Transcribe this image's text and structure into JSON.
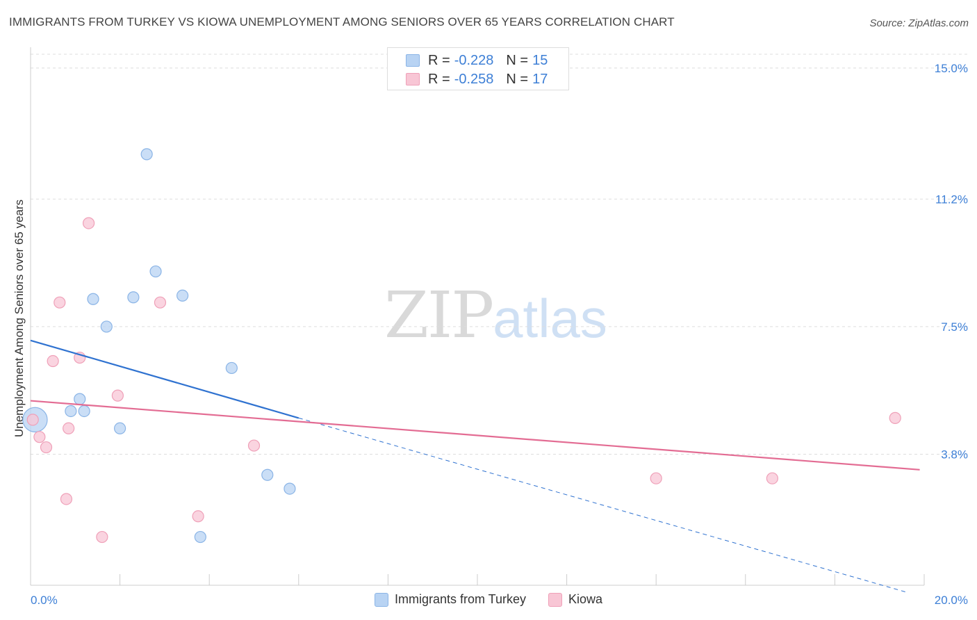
{
  "header": {
    "title": "IMMIGRANTS FROM TURKEY VS KIOWA UNEMPLOYMENT AMONG SENIORS OVER 65 YEARS CORRELATION CHART",
    "source": "Source: ZipAtlas.com"
  },
  "watermark": {
    "zip": "ZIP",
    "atlas": "atlas"
  },
  "legend_top": {
    "rows": [
      {
        "r_label": "R =",
        "r_value": "-0.228",
        "n_label": "N =",
        "n_value": "15"
      },
      {
        "r_label": "R =",
        "r_value": "-0.258",
        "n_label": "N =",
        "n_value": "17"
      }
    ]
  },
  "legend_bottom": {
    "items": [
      "Immigrants from Turkey",
      "Kiowa"
    ]
  },
  "colors": {
    "turkey_fill": "#b8d3f3",
    "turkey_stroke": "#8ab4e6",
    "turkey_line": "#2f72d0",
    "kiowa_fill": "#f8c6d5",
    "kiowa_stroke": "#efa0b8",
    "kiowa_line": "#e36c93",
    "tick_label": "#3d7fd6",
    "grid": "#dddddd"
  },
  "chart_data": {
    "type": "scatter",
    "title": "IMMIGRANTS FROM TURKEY VS KIOWA UNEMPLOYMENT AMONG SENIORS OVER 65 YEARS CORRELATION CHART",
    "xlabel": "",
    "ylabel": "Unemployment Among Seniors over 65 years",
    "xlim": [
      0,
      20
    ],
    "ylim": [
      0,
      15.4
    ],
    "x_tick_labels": [
      "0.0%",
      "20.0%"
    ],
    "y_ticks": [
      3.8,
      7.5,
      11.2,
      15.0
    ],
    "y_tick_labels": [
      "3.8%",
      "7.5%",
      "11.2%",
      "15.0%"
    ],
    "grid": true,
    "legend_position": "top-center",
    "series": [
      {
        "name": "Immigrants from Turkey",
        "points": [
          [
            0.1,
            4.8,
            2.2
          ],
          [
            0.9,
            5.05,
            1
          ],
          [
            1.2,
            5.05,
            1
          ],
          [
            1.1,
            5.4,
            1
          ],
          [
            1.4,
            8.3,
            1
          ],
          [
            1.7,
            7.5,
            1
          ],
          [
            2.0,
            4.55,
            1
          ],
          [
            2.3,
            8.35,
            1
          ],
          [
            2.6,
            12.5,
            1
          ],
          [
            2.8,
            9.1,
            1
          ],
          [
            3.4,
            8.4,
            1
          ],
          [
            3.8,
            1.4,
            1
          ],
          [
            4.5,
            6.3,
            1
          ],
          [
            5.3,
            3.2,
            1
          ],
          [
            5.8,
            2.8,
            1
          ]
        ],
        "trend": {
          "x": [
            0,
            6.0
          ],
          "y": [
            7.1,
            4.85
          ]
        },
        "trend_extended": {
          "x": [
            6.0,
            19.6
          ],
          "y": [
            4.85,
            -0.2
          ]
        }
      },
      {
        "name": "Kiowa",
        "points": [
          [
            0.05,
            4.8,
            1
          ],
          [
            0.2,
            4.3,
            1
          ],
          [
            0.35,
            4.0,
            1
          ],
          [
            0.5,
            6.5,
            1
          ],
          [
            0.65,
            8.2,
            1
          ],
          [
            0.8,
            2.5,
            1
          ],
          [
            0.85,
            4.55,
            1
          ],
          [
            1.1,
            6.6,
            1
          ],
          [
            1.3,
            10.5,
            1
          ],
          [
            1.6,
            1.4,
            1
          ],
          [
            1.95,
            5.5,
            1
          ],
          [
            2.9,
            8.2,
            1
          ],
          [
            3.75,
            2.0,
            1
          ],
          [
            5.0,
            4.05,
            1
          ],
          [
            14.0,
            3.1,
            1
          ],
          [
            16.6,
            3.1,
            1
          ],
          [
            19.35,
            4.85,
            1
          ]
        ],
        "trend": {
          "x": [
            0,
            19.9
          ],
          "y": [
            5.35,
            3.35
          ]
        }
      }
    ]
  }
}
